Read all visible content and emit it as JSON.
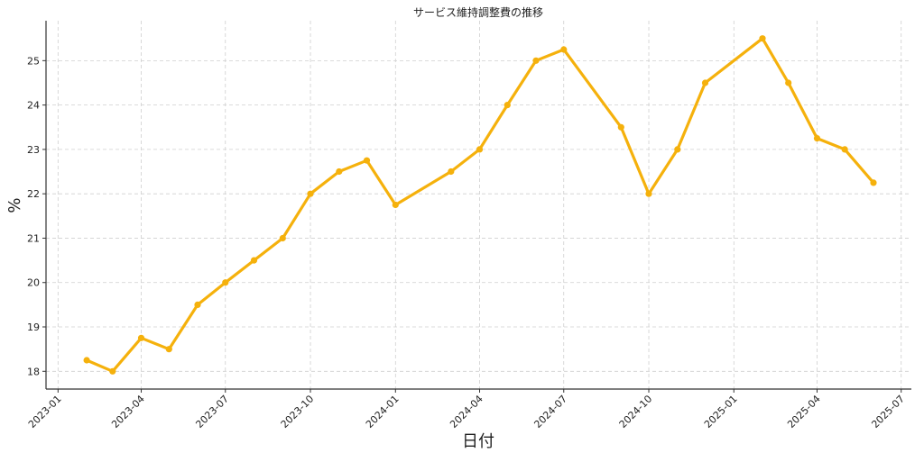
{
  "chart_data": {
    "type": "line",
    "title": "サービス維持調整費の推移",
    "xlabel": "日付",
    "ylabel": "%",
    "ylim": [
      17.6,
      25.9
    ],
    "xlim": [
      "2022-12-19",
      "2025-07-12"
    ],
    "yticks": [
      18,
      19,
      20,
      21,
      22,
      23,
      24,
      25
    ],
    "xticks": [
      "2023-01",
      "2023-04",
      "2023-07",
      "2023-10",
      "2024-01",
      "2024-04",
      "2024-07",
      "2024-10",
      "2025-01",
      "2025-04",
      "2025-07"
    ],
    "grid": true,
    "color": "#f5b10c",
    "series": [
      {
        "x": [
          "2023-02-01",
          "2023-03-01",
          "2023-04-01",
          "2023-05-01",
          "2023-06-01",
          "2023-07-01",
          "2023-08-01",
          "2023-09-01",
          "2023-10-01",
          "2023-11-01",
          "2023-12-01",
          "2024-01-01",
          "2024-03-01",
          "2024-04-01",
          "2024-05-01",
          "2024-06-01",
          "2024-07-01",
          "2024-09-01",
          "2024-10-01",
          "2024-11-01",
          "2024-12-01",
          "2025-02-01",
          "2025-03-01",
          "2025-04-01",
          "2025-05-01",
          "2025-06-01"
        ],
        "values": [
          18.25,
          18.0,
          18.75,
          18.5,
          19.5,
          20.0,
          20.5,
          21.0,
          22.0,
          22.5,
          22.75,
          21.75,
          22.5,
          23.0,
          24.0,
          25.0,
          25.25,
          23.5,
          22.0,
          23.0,
          24.5,
          25.5,
          24.5,
          23.25,
          23.0,
          22.25
        ]
      }
    ]
  }
}
